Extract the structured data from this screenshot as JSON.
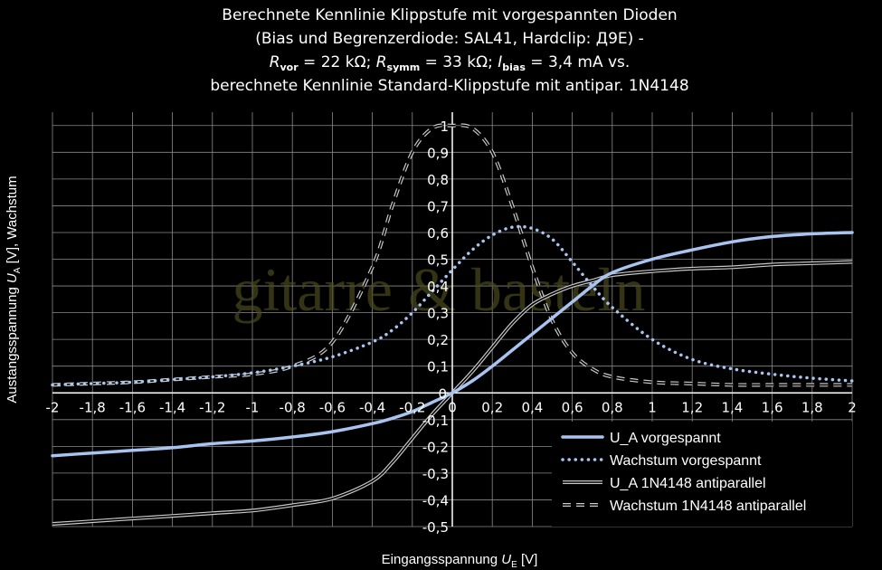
{
  "title_lines": [
    "Berechnete Kennlinie Klippstufe mit vorgespannten Dioden",
    "(Bias und Begrenzerdiode: SAL41, Hardclip: Д9Е) -",
    "R_vor = 22 kΩ; R_symm = 33 kΩ; I_bias = 3,4 mA vs.",
    "berechnete Kennlinie Standard-Klippstufe mit antipar. 1N4148"
  ],
  "title_line3_parts": {
    "r1": "R",
    "r1_sub": "vor",
    "r1_val": " = 22 kΩ; ",
    "r2": "R",
    "r2_sub": "symm",
    "r2_val": " = 33 kΩ; ",
    "i": "I",
    "i_sub": "bias",
    "i_val": " = 3,4 mA vs."
  },
  "watermark": "gitarre & basteln",
  "colors": {
    "background": "#000000",
    "grid": "#8a8a8a",
    "blue": "#a9c4f0",
    "gray": "#c8c8c8"
  },
  "chart_data": {
    "type": "line",
    "xlabel": "Eingangsspannung U_E [V]",
    "xlabel_parts": {
      "pre": "Eingangsspannung ",
      "sym": "U",
      "sub": "E",
      "post": " [V]"
    },
    "ylabel": "Austangsspannung U_A [V], Wachstum",
    "ylabel_parts": {
      "pre": "Austangsspannung ",
      "sym": "U",
      "sub": "A",
      "post": " [V], Wachstum"
    },
    "xlim": [
      -2,
      2
    ],
    "ylim": [
      -0.5,
      1.05
    ],
    "grid": true,
    "legend_position": "bottom-right",
    "x_ticks": [
      "-2",
      "-1,8",
      "-1,6",
      "-1,4",
      "-1,2",
      "-1",
      "-0,8",
      "-0,6",
      "-0,4",
      "-0,2",
      "0",
      "0,2",
      "0,4",
      "0,6",
      "0,8",
      "1",
      "1,2",
      "1,4",
      "1,6",
      "1,8",
      "2"
    ],
    "y_ticks": [
      "-0,5",
      "-0,4",
      "-0,3",
      "-0,2",
      "-0,1",
      "0",
      "0,1",
      "0,2",
      "0,3",
      "0,4",
      "0,5",
      "0,6",
      "0,7",
      "0,8",
      "0,9",
      "1"
    ],
    "x": [
      -2.0,
      -1.8,
      -1.6,
      -1.4,
      -1.2,
      -1.0,
      -0.8,
      -0.6,
      -0.4,
      -0.3,
      -0.2,
      -0.1,
      0.0,
      0.1,
      0.2,
      0.3,
      0.4,
      0.5,
      0.6,
      0.7,
      0.8,
      1.0,
      1.2,
      1.4,
      1.6,
      1.8,
      2.0
    ],
    "series": [
      {
        "name": "U_A vorgespannt",
        "style": "solid-thick",
        "values": [
          -0.235,
          -0.225,
          -0.215,
          -0.205,
          -0.19,
          -0.18,
          -0.165,
          -0.145,
          -0.115,
          -0.095,
          -0.07,
          -0.035,
          0.0,
          0.045,
          0.1,
          0.16,
          0.22,
          0.28,
          0.34,
          0.4,
          0.45,
          0.5,
          0.535,
          0.565,
          0.585,
          0.595,
          0.6
        ]
      },
      {
        "name": "Wachstum vorgespannt",
        "style": "dotted",
        "values": [
          0.03,
          0.035,
          0.04,
          0.05,
          0.06,
          0.075,
          0.1,
          0.135,
          0.19,
          0.235,
          0.3,
          0.38,
          0.46,
          0.535,
          0.59,
          0.62,
          0.615,
          0.575,
          0.49,
          0.4,
          0.32,
          0.2,
          0.125,
          0.09,
          0.07,
          0.055,
          0.045
        ]
      },
      {
        "name": "U_A 1N4148 antiparallel",
        "style": "double-thin",
        "values": [
          -0.49,
          -0.48,
          -0.47,
          -0.46,
          -0.45,
          -0.44,
          -0.42,
          -0.395,
          -0.33,
          -0.26,
          -0.17,
          -0.08,
          0.0,
          0.08,
          0.17,
          0.26,
          0.33,
          0.37,
          0.4,
          0.42,
          0.44,
          0.455,
          0.465,
          0.47,
          0.48,
          0.485,
          0.49
        ]
      },
      {
        "name": "Wachstum 1N4148 antiparallel",
        "style": "dashed-double",
        "values": [
          0.03,
          0.035,
          0.04,
          0.05,
          0.06,
          0.07,
          0.1,
          0.19,
          0.47,
          0.7,
          0.9,
          0.99,
          1.0,
          0.99,
          0.9,
          0.7,
          0.47,
          0.27,
          0.15,
          0.09,
          0.06,
          0.04,
          0.035,
          0.03,
          0.03,
          0.03,
          0.03
        ]
      }
    ]
  }
}
